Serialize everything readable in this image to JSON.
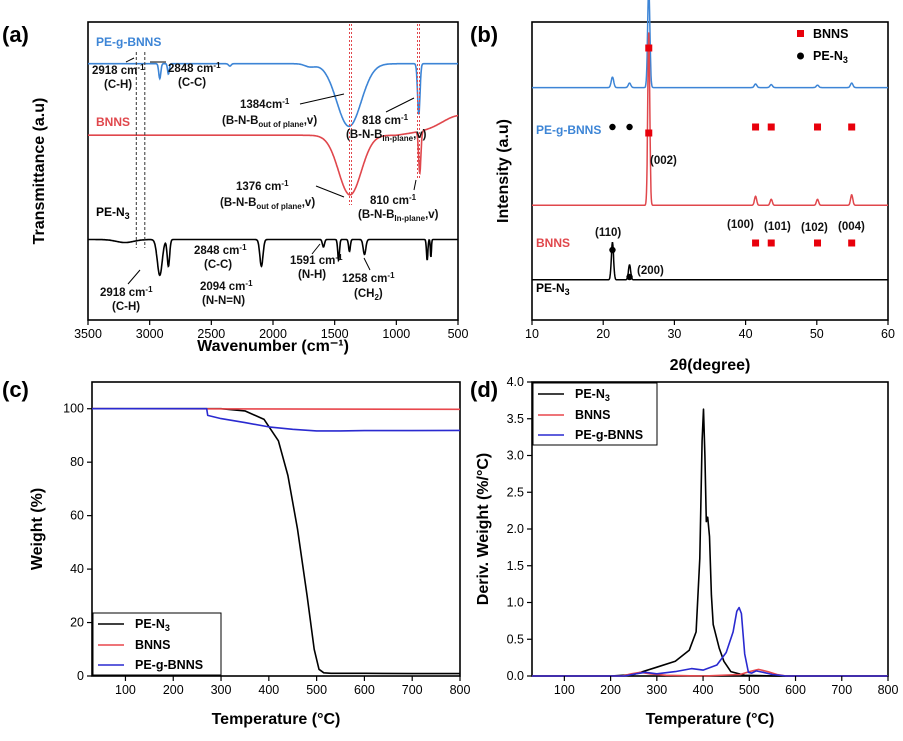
{
  "colors": {
    "pe_n3": "#000000",
    "bnns": "#e0474c",
    "pe_g_bnns": "#3d85d6",
    "bnns_marker": "#e8000b",
    "pe_n3_marker": "#000000",
    "tga_pe_n3": "#000000",
    "tga_bnns": "#e8474c",
    "tga_pe_g_bnns": "#2a2ad0"
  },
  "chart_data": [
    {
      "panel": "(a)",
      "type": "line",
      "xlabel": "Wavenumber (cm⁻¹)",
      "ylabel": "Transmittance (a.u)",
      "xlim": [
        3500,
        500
      ],
      "xticks": [
        "3500",
        "3000",
        "2500",
        "2000",
        "1500",
        "1000",
        "500"
      ],
      "series": [
        {
          "name": "PE-g-BNNS",
          "color_key": "pe_g_bnns",
          "offset": 0.86,
          "dips": [
            [
              2918,
              0.05,
              12
            ],
            [
              2848,
              0.035,
              10
            ],
            [
              1384,
              0.21,
              140
            ],
            [
              818,
              0.17,
              14
            ],
            [
              2350,
              0.008,
              15
            ],
            [
              1700,
              0.01,
              60
            ]
          ]
        },
        {
          "name": "BNNS",
          "color_key": "bnns",
          "offset": 0.62,
          "dips": [
            [
              1376,
              0.2,
              130
            ],
            [
              810,
              0.14,
              13
            ]
          ]
        },
        {
          "name": "PE-N₃",
          "color_key": "pe_n3",
          "offset": 0.27,
          "dips": [
            [
              2918,
              0.12,
              28
            ],
            [
              2848,
              0.09,
              14
            ],
            [
              2094,
              0.09,
              18
            ],
            [
              1591,
              0.025,
              12
            ],
            [
              1468,
              0.07,
              10
            ],
            [
              1380,
              0.04,
              10
            ],
            [
              1258,
              0.05,
              15
            ],
            [
              750,
              0.07,
              8
            ],
            [
              720,
              0.06,
              6
            ],
            [
              3200,
              0.01,
              100
            ]
          ]
        }
      ],
      "series_labels": [
        "PE-g-BNNS",
        "BNNS",
        "PE-N",
        "3"
      ],
      "annotations": [
        {
          "id": "a1",
          "lines": [
            "2918 cm",
            "-1",
            "(C-H)"
          ]
        },
        {
          "id": "a2",
          "lines": [
            "2848 cm",
            "-1",
            "(C-C)"
          ]
        },
        {
          "id": "a3",
          "lines": [
            "1384cm",
            "-1",
            "(B-N-B",
            "out of plane",
            ",v)"
          ]
        },
        {
          "id": "a4",
          "lines": [
            "818 cm",
            "-1",
            "(B-N-B",
            "In-plane",
            ",v)"
          ]
        },
        {
          "id": "a5",
          "lines": [
            "1376 cm",
            "-1",
            "(B-N-B",
            "out of plane",
            ",v)"
          ]
        },
        {
          "id": "a6",
          "lines": [
            "810 cm",
            "-1",
            "(B-N-B",
            "In-plane",
            ",v)"
          ]
        },
        {
          "id": "a7",
          "lines": [
            "2848 cm",
            "-1",
            "(C-C)"
          ]
        },
        {
          "id": "a8",
          "lines": [
            "1591 cm",
            "-1",
            "(N-H)"
          ]
        },
        {
          "id": "a9",
          "lines": [
            "2918 cm",
            "-1",
            "(C-H)"
          ]
        },
        {
          "id": "a10",
          "lines": [
            "2094 cm",
            "-1",
            "(N-N=N)"
          ]
        },
        {
          "id": "a11",
          "lines": [
            "1258 cm",
            "-1",
            "(CH",
            "2",
            ")"
          ]
        }
      ]
    },
    {
      "panel": "(b)",
      "type": "line",
      "xlabel": "2θ(degree)",
      "ylabel": "Intensity (a.u)",
      "xlim": [
        10,
        60
      ],
      "xticks": [
        "10",
        "20",
        "30",
        "40",
        "50",
        "60"
      ],
      "series": [
        {
          "name": "PE-g-BNNS",
          "color_key": "pe_g_bnns",
          "base": 0.78,
          "peaks": [
            [
              21.3,
              0.035,
              0.25
            ],
            [
              23.7,
              0.015,
              0.25
            ],
            [
              26.4,
              0.34,
              0.22
            ],
            [
              41.4,
              0.012,
              0.25
            ],
            [
              43.6,
              0.01,
              0.25
            ],
            [
              50.1,
              0.008,
              0.25
            ],
            [
              54.9,
              0.015,
              0.25
            ]
          ]
        },
        {
          "name": "BNNS",
          "color_key": "bnns",
          "base": 0.385,
          "peaks": [
            [
              26.4,
              0.58,
              0.2
            ],
            [
              41.4,
              0.03,
              0.22
            ],
            [
              43.6,
              0.02,
              0.22
            ],
            [
              50.1,
              0.02,
              0.22
            ],
            [
              54.9,
              0.035,
              0.22
            ]
          ]
        },
        {
          "name": "PE-N₃",
          "color_key": "pe_n3",
          "base": 0.135,
          "peaks": [
            [
              21.3,
              0.125,
              0.22
            ],
            [
              23.7,
              0.05,
              0.22
            ]
          ]
        }
      ],
      "series_labels": [
        "PE-g-BNNS",
        "BNNS",
        "PE-N",
        "3"
      ],
      "peak_labels": [
        "(002)",
        "(110)",
        "(200)",
        "(100)",
        "(101)",
        "(102)",
        "(004)"
      ],
      "markers": {
        "bnns_top": [
          26.4
        ],
        "bnns_pegbnns": [
          26.4,
          41.4,
          43.6,
          50.1,
          54.9
        ],
        "pe_pegbnns": [
          21.3,
          23.7
        ],
        "bnns_bnns": [
          41.4,
          43.6,
          50.1,
          54.9
        ],
        "pe_bnns": [
          21.3
        ],
        "pe_pen3": [
          23.7
        ]
      },
      "legend": [
        "BNNS",
        "PE-N",
        "3"
      ]
    },
    {
      "panel": "(c)",
      "type": "line",
      "xlabel": "Temperature (°C)",
      "ylabel": "Weight (%)",
      "xlim": [
        30,
        800
      ],
      "ylim": [
        0,
        110
      ],
      "xticks": [
        100,
        200,
        300,
        400,
        500,
        600,
        700,
        800
      ],
      "yticks": [
        0,
        20,
        40,
        60,
        80,
        100
      ],
      "series": [
        {
          "name": "PE-N₃",
          "color_key": "tga_pe_n3",
          "x": [
            30,
            300,
            350,
            390,
            420,
            440,
            460,
            480,
            495,
            505,
            515,
            530,
            600,
            700,
            800
          ],
          "y": [
            100,
            100,
            99.2,
            96,
            88,
            75,
            55,
            30,
            10,
            2.5,
            1.2,
            1.0,
            1.0,
            0.9,
            0.9
          ]
        },
        {
          "name": "BNNS",
          "color_key": "tga_bnns",
          "x": [
            30,
            800
          ],
          "y": [
            100,
            99.8
          ]
        },
        {
          "name": "PE-g-BNNS",
          "color_key": "tga_pe_g_bnns",
          "x": [
            30,
            270,
            272,
            300,
            350,
            400,
            450,
            500,
            550,
            600,
            700,
            800
          ],
          "y": [
            100,
            100,
            97.5,
            96.3,
            94.8,
            93.2,
            92.3,
            91.7,
            91.7,
            91.8,
            91.8,
            91.9
          ]
        }
      ],
      "legend": [
        "PE-N",
        "3",
        "BNNS",
        "PE-g-BNNS"
      ]
    },
    {
      "panel": "(d)",
      "type": "line",
      "xlabel": "Temperature (°C)",
      "ylabel": "Deriv. Weight (%/°C)",
      "xlim": [
        30,
        800
      ],
      "ylim": [
        0,
        4.0
      ],
      "xticks": [
        100,
        200,
        300,
        400,
        500,
        600,
        700,
        800
      ],
      "yticks": [
        "0.0",
        "0.5",
        "1.0",
        "1.5",
        "2.0",
        "2.5",
        "3.0",
        "3.5",
        "4.0"
      ],
      "series": [
        {
          "name": "PE-N₃",
          "color_key": "tga_pe_n3",
          "x": [
            30,
            200,
            250,
            300,
            340,
            370,
            385,
            393,
            398,
            401,
            404,
            407,
            410,
            414,
            418,
            422,
            428,
            435,
            445,
            460,
            490,
            560,
            800
          ],
          "y": [
            0,
            0,
            0.02,
            0.12,
            0.2,
            0.35,
            0.6,
            1.6,
            3.2,
            3.63,
            3.0,
            2.1,
            2.16,
            1.9,
            1.1,
            0.7,
            0.55,
            0.38,
            0.2,
            0.06,
            0.01,
            0,
            0
          ]
        },
        {
          "name": "BNNS",
          "color_key": "tga_bnns",
          "x": [
            30,
            225,
            245,
            265,
            285,
            320,
            400,
            480,
            500,
            520,
            540,
            560,
            580,
            800
          ],
          "y": [
            0,
            0,
            0.03,
            0.05,
            0.03,
            0.01,
            0,
            0.02,
            0.06,
            0.09,
            0.06,
            0.02,
            0,
            0
          ]
        },
        {
          "name": "PE-g-BNNS",
          "color_key": "tga_pe_g_bnns",
          "x": [
            30,
            230,
            255,
            275,
            300,
            340,
            375,
            400,
            430,
            450,
            465,
            473,
            478,
            483,
            490,
            498,
            505,
            515,
            530,
            550,
            580,
            800
          ],
          "y": [
            0,
            0,
            0.03,
            0.05,
            0.03,
            0.06,
            0.1,
            0.08,
            0.15,
            0.32,
            0.6,
            0.88,
            0.93,
            0.85,
            0.3,
            0.05,
            0.04,
            0.07,
            0.05,
            0.02,
            0,
            0
          ]
        }
      ],
      "legend": [
        "PE-N",
        "3",
        "BNNS",
        "PE-g-BNNS"
      ]
    }
  ]
}
